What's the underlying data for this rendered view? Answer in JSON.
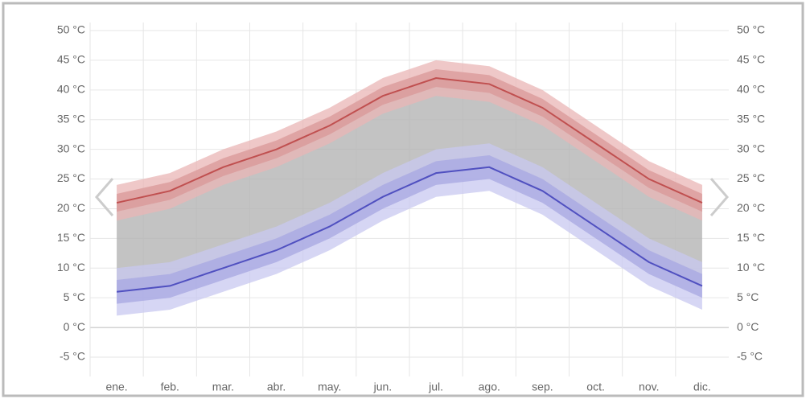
{
  "chart_data": {
    "type": "band-line",
    "categories": [
      "ene.",
      "feb.",
      "mar.",
      "abr.",
      "may.",
      "jun.",
      "jul.",
      "ago.",
      "sep.",
      "oct.",
      "nov.",
      "dic."
    ],
    "series": [
      {
        "kind": "band",
        "color": "#e9b5b5",
        "upper": [
          24,
          26,
          30,
          33,
          37,
          42,
          45,
          44,
          40,
          34,
          28,
          24
        ],
        "lower": [
          18,
          20,
          24,
          27,
          31,
          36,
          39,
          38,
          34,
          28,
          22,
          18
        ]
      },
      {
        "kind": "band",
        "color": "#d99898",
        "upper": [
          22.5,
          24.5,
          28.5,
          31.5,
          35.5,
          40.5,
          43.5,
          42.5,
          38.5,
          32.5,
          26.5,
          22.5
        ],
        "lower": [
          19.5,
          21.5,
          25.5,
          28.5,
          32.5,
          37.5,
          40.5,
          39.5,
          35.5,
          29.5,
          23.5,
          19.5
        ]
      },
      {
        "kind": "band",
        "color": "#c8c8f0",
        "upper": [
          10,
          11,
          14,
          17,
          21,
          26,
          30,
          31,
          27,
          21,
          15,
          11
        ],
        "lower": [
          2,
          3,
          6,
          9,
          13,
          18,
          22,
          23,
          19,
          13,
          7,
          3
        ]
      },
      {
        "kind": "band",
        "color": "#a7a7e2",
        "upper": [
          8,
          9,
          12,
          15,
          19,
          24,
          28,
          29,
          25,
          19,
          13,
          9
        ],
        "lower": [
          4,
          5,
          8,
          11,
          15,
          20,
          24,
          25,
          21,
          15,
          9,
          5
        ]
      },
      {
        "kind": "line",
        "color": "#c05050",
        "values": [
          21,
          23,
          27,
          30,
          34,
          39,
          42,
          41,
          37,
          31,
          25,
          21
        ]
      },
      {
        "kind": "line",
        "color": "#5050c0",
        "values": [
          6,
          7,
          10,
          13,
          17,
          22,
          26,
          27,
          23,
          17,
          11,
          7
        ]
      }
    ],
    "fill_between": {
      "color": "#b4b4b4"
    },
    "ylim": [
      -5,
      50
    ],
    "yticks": [
      {
        "value": -5,
        "label": "-5 °C"
      },
      {
        "value": 0,
        "label": "0 °C"
      },
      {
        "value": 5,
        "label": "5 °C"
      },
      {
        "value": 10,
        "label": "10 °C"
      },
      {
        "value": 15,
        "label": "15 °C"
      },
      {
        "value": 20,
        "label": "20 °C"
      },
      {
        "value": 25,
        "label": "25 °C"
      },
      {
        "value": 30,
        "label": "30 °C"
      },
      {
        "value": 35,
        "label": "35 °C"
      },
      {
        "value": 40,
        "label": "40 °C"
      },
      {
        "value": 45,
        "label": "45 °C"
      },
      {
        "value": 50,
        "label": "50 °C"
      }
    ],
    "y2lim": [
      -5,
      50
    ],
    "y2ticks": [
      {
        "value": -5,
        "label": "-5 °C"
      },
      {
        "value": 0,
        "label": "0 °C"
      },
      {
        "value": 5,
        "label": "5 °C"
      },
      {
        "value": 10,
        "label": "10 °C"
      },
      {
        "value": 15,
        "label": "15 °C"
      },
      {
        "value": 20,
        "label": "20 °C"
      },
      {
        "value": 25,
        "label": "25 °C"
      },
      {
        "value": 30,
        "label": "30 °C"
      },
      {
        "value": 35,
        "label": "35 °C"
      },
      {
        "value": 40,
        "label": "40 °C"
      },
      {
        "value": 45,
        "label": "45 °C"
      },
      {
        "value": 50,
        "label": "50 °C"
      }
    ],
    "grid": true
  }
}
